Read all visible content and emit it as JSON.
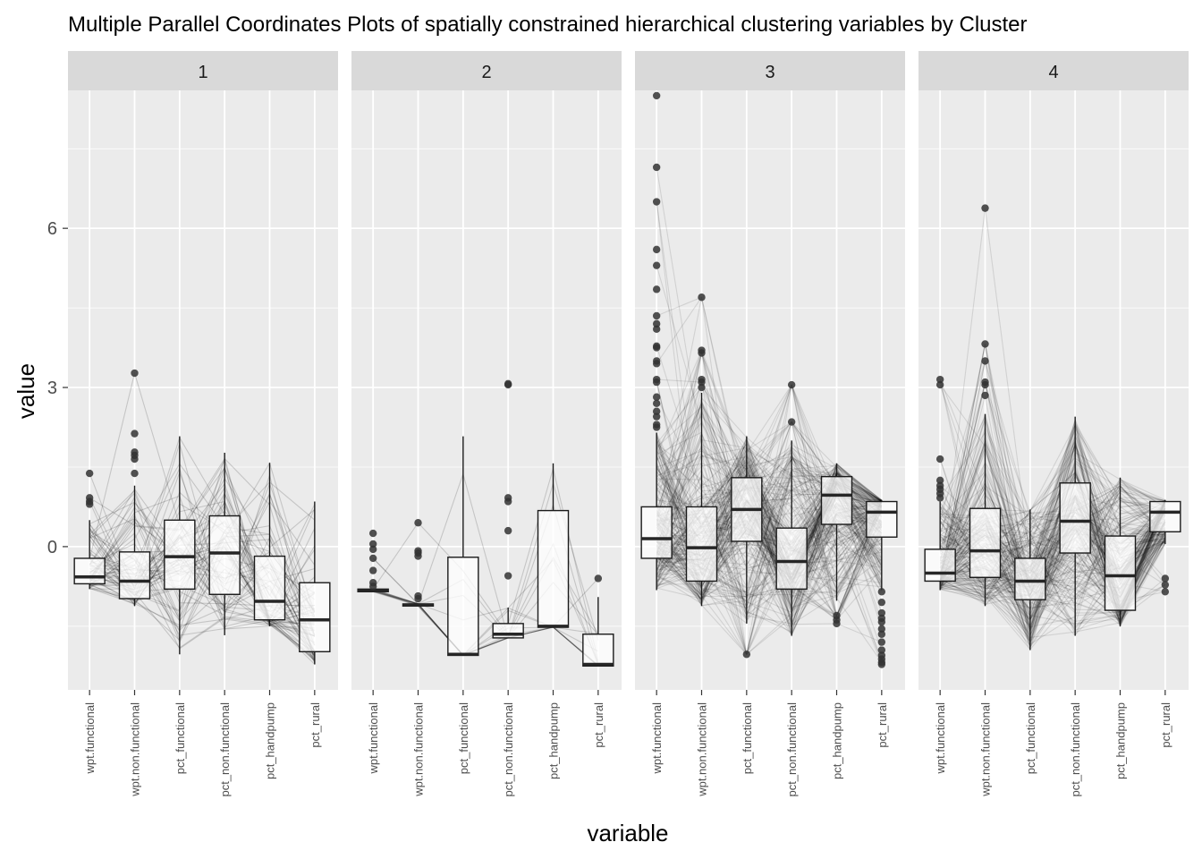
{
  "chart_data": {
    "type": "parallel-coordinates-boxplot",
    "title": "Multiple Parallel Coordinates Plots of spatially constrained hierarchical clustering variables by Cluster",
    "xlabel": "variable",
    "ylabel": "value",
    "y_ticks": [
      0,
      3,
      6
    ],
    "ylim": [
      -2.7,
      8.6
    ],
    "grid": true,
    "variables": [
      "wpt.functional",
      "wpt.non.functional",
      "pct_functional",
      "pct_non.functional",
      "pct_handpump",
      "pct_rural"
    ],
    "colors": {
      "panel_bg": "#ebebeb",
      "strip_bg": "#d9d9d9",
      "grid": "#ffffff",
      "line": "#000000",
      "point": "#333333",
      "box_fill": "#ffffff"
    },
    "facets": [
      {
        "label": "1",
        "line_count": 70,
        "boxes": [
          {
            "q1": -0.7,
            "median": -0.57,
            "q3": -0.22,
            "wlo": -0.8,
            "whi": 0.5,
            "outliers": [
              0.8,
              0.85,
              0.92,
              1.38
            ]
          },
          {
            "q1": -0.98,
            "median": -0.65,
            "q3": -0.1,
            "wlo": -1.12,
            "whi": 1.15,
            "outliers": [
              1.38,
              1.65,
              1.72,
              1.78,
              2.13,
              3.27
            ]
          },
          {
            "q1": -0.8,
            "median": -0.19,
            "q3": 0.5,
            "wlo": -2.03,
            "whi": 2.08,
            "outliers": []
          },
          {
            "q1": -0.9,
            "median": -0.12,
            "q3": 0.58,
            "wlo": -1.67,
            "whi": 1.77,
            "outliers": []
          },
          {
            "q1": -1.38,
            "median": -1.03,
            "q3": -0.18,
            "wlo": -1.5,
            "whi": 1.58,
            "outliers": []
          },
          {
            "q1": -1.98,
            "median": -1.38,
            "q3": -0.68,
            "wlo": -2.22,
            "whi": 0.85,
            "outliers": []
          }
        ]
      },
      {
        "label": "2",
        "line_count": 16,
        "boxes": [
          {
            "q1": -0.85,
            "median": -0.83,
            "q3": -0.8,
            "wlo": -0.85,
            "whi": -0.8,
            "outliers": [
              -0.75,
              -0.68,
              -0.45,
              -0.22,
              -0.05,
              0.05,
              0.25
            ]
          },
          {
            "q1": -1.12,
            "median": -1.1,
            "q3": -1.08,
            "wlo": -1.12,
            "whi": -1.08,
            "outliers": [
              -0.98,
              -0.93,
              -0.18,
              -0.12,
              -0.08,
              0.45
            ]
          },
          {
            "q1": -2.05,
            "median": -2.03,
            "q3": -0.2,
            "wlo": -2.05,
            "whi": 2.08,
            "outliers": []
          },
          {
            "q1": -1.72,
            "median": -1.65,
            "q3": -1.45,
            "wlo": -1.72,
            "whi": -1.15,
            "outliers": [
              -0.55,
              0.3,
              0.85,
              0.92,
              3.05,
              3.07
            ]
          },
          {
            "q1": -1.52,
            "median": -1.5,
            "q3": 0.68,
            "wlo": -1.52,
            "whi": 1.57,
            "outliers": []
          },
          {
            "q1": -2.25,
            "median": -2.22,
            "q3": -1.65,
            "wlo": -2.25,
            "whi": -0.95,
            "outliers": [
              -0.6
            ]
          }
        ]
      },
      {
        "label": "3",
        "line_count": 260,
        "boxes": [
          {
            "q1": -0.22,
            "median": 0.15,
            "q3": 0.75,
            "wlo": -0.82,
            "whi": 2.15,
            "outliers": [
              2.25,
              2.3,
              2.45,
              2.55,
              2.7,
              2.82,
              3.1,
              3.15,
              3.45,
              3.5,
              3.75,
              3.78,
              4.1,
              4.2,
              4.35,
              4.85,
              5.3,
              5.6,
              6.5,
              7.15,
              8.5
            ]
          },
          {
            "q1": -0.65,
            "median": -0.02,
            "q3": 0.75,
            "wlo": -1.12,
            "whi": 2.9,
            "outliers": [
              3.0,
              3.1,
              3.15,
              3.65,
              3.7,
              4.7
            ]
          },
          {
            "q1": 0.1,
            "median": 0.7,
            "q3": 1.3,
            "wlo": -1.45,
            "whi": 2.08,
            "outliers": [
              -2.03
            ]
          },
          {
            "q1": -0.8,
            "median": -0.28,
            "q3": 0.35,
            "wlo": -1.68,
            "whi": 2.0,
            "outliers": [
              2.35,
              3.05
            ]
          },
          {
            "q1": 0.42,
            "median": 0.97,
            "q3": 1.32,
            "wlo": -1.02,
            "whi": 1.57,
            "outliers": [
              -1.3,
              -1.38,
              -1.45
            ]
          },
          {
            "q1": 0.18,
            "median": 0.65,
            "q3": 0.85,
            "wlo": -0.82,
            "whi": 0.88,
            "outliers": [
              -0.85,
              -1.05,
              -1.25,
              -1.35,
              -1.42,
              -1.55,
              -1.65,
              -1.8,
              -1.95,
              -2.05,
              -2.12,
              -2.18,
              -2.22
            ]
          }
        ]
      },
      {
        "label": "4",
        "line_count": 220,
        "boxes": [
          {
            "q1": -0.65,
            "median": -0.5,
            "q3": -0.05,
            "wlo": -0.82,
            "whi": 0.85,
            "outliers": [
              0.92,
              1.0,
              1.08,
              1.15,
              1.25,
              1.65,
              3.05,
              3.15
            ]
          },
          {
            "q1": -0.58,
            "median": -0.08,
            "q3": 0.72,
            "wlo": -1.12,
            "whi": 2.5,
            "outliers": [
              2.85,
              3.05,
              3.1,
              3.5,
              3.82,
              6.38
            ]
          },
          {
            "q1": -1.0,
            "median": -0.65,
            "q3": -0.22,
            "wlo": -1.95,
            "whi": 0.7,
            "outliers": []
          },
          {
            "q1": -0.12,
            "median": 0.48,
            "q3": 1.2,
            "wlo": -1.68,
            "whi": 2.45,
            "outliers": []
          },
          {
            "q1": -1.2,
            "median": -0.55,
            "q3": 0.2,
            "wlo": -1.5,
            "whi": 1.3,
            "outliers": []
          },
          {
            "q1": 0.28,
            "median": 0.65,
            "q3": 0.85,
            "wlo": 0.05,
            "whi": 0.88,
            "outliers": [
              -0.6,
              -0.72,
              -0.85
            ]
          }
        ]
      }
    ]
  }
}
